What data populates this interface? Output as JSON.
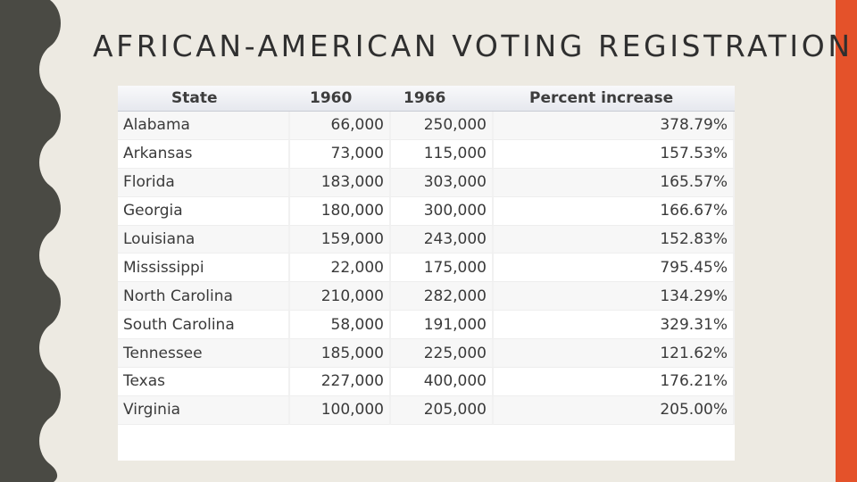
{
  "slide": {
    "title": "AFRICAN-AMERICAN VOTING REGISTRATION",
    "accent_color": "#e4522a",
    "deco_color": "#4a4a44",
    "background_color": "#edeae2"
  },
  "table": {
    "headers": [
      "State",
      "1960",
      "1966",
      "Percent increase"
    ],
    "rows": [
      {
        "state": "Alabama",
        "y1960": "66,000",
        "y1966": "250,000",
        "pct": "378.79%"
      },
      {
        "state": "Arkansas",
        "y1960": "73,000",
        "y1966": "115,000",
        "pct": "157.53%"
      },
      {
        "state": "Florida",
        "y1960": "183,000",
        "y1966": "303,000",
        "pct": "165.57%"
      },
      {
        "state": "Georgia",
        "y1960": "180,000",
        "y1966": "300,000",
        "pct": "166.67%"
      },
      {
        "state": "Louisiana",
        "y1960": "159,000",
        "y1966": "243,000",
        "pct": "152.83%"
      },
      {
        "state": "Mississippi",
        "y1960": "22,000",
        "y1966": "175,000",
        "pct": "795.45%"
      },
      {
        "state": "North Carolina",
        "y1960": "210,000",
        "y1966": "282,000",
        "pct": "134.29%"
      },
      {
        "state": "South Carolina",
        "y1960": "58,000",
        "y1966": "191,000",
        "pct": "329.31%"
      },
      {
        "state": "Tennessee",
        "y1960": "185,000",
        "y1966": "225,000",
        "pct": "121.62%"
      },
      {
        "state": "Texas",
        "y1960": "227,000",
        "y1966": "400,000",
        "pct": "176.21%"
      },
      {
        "state": "Virginia",
        "y1960": "100,000",
        "y1966": "205,000",
        "pct": "205.00%"
      }
    ]
  }
}
